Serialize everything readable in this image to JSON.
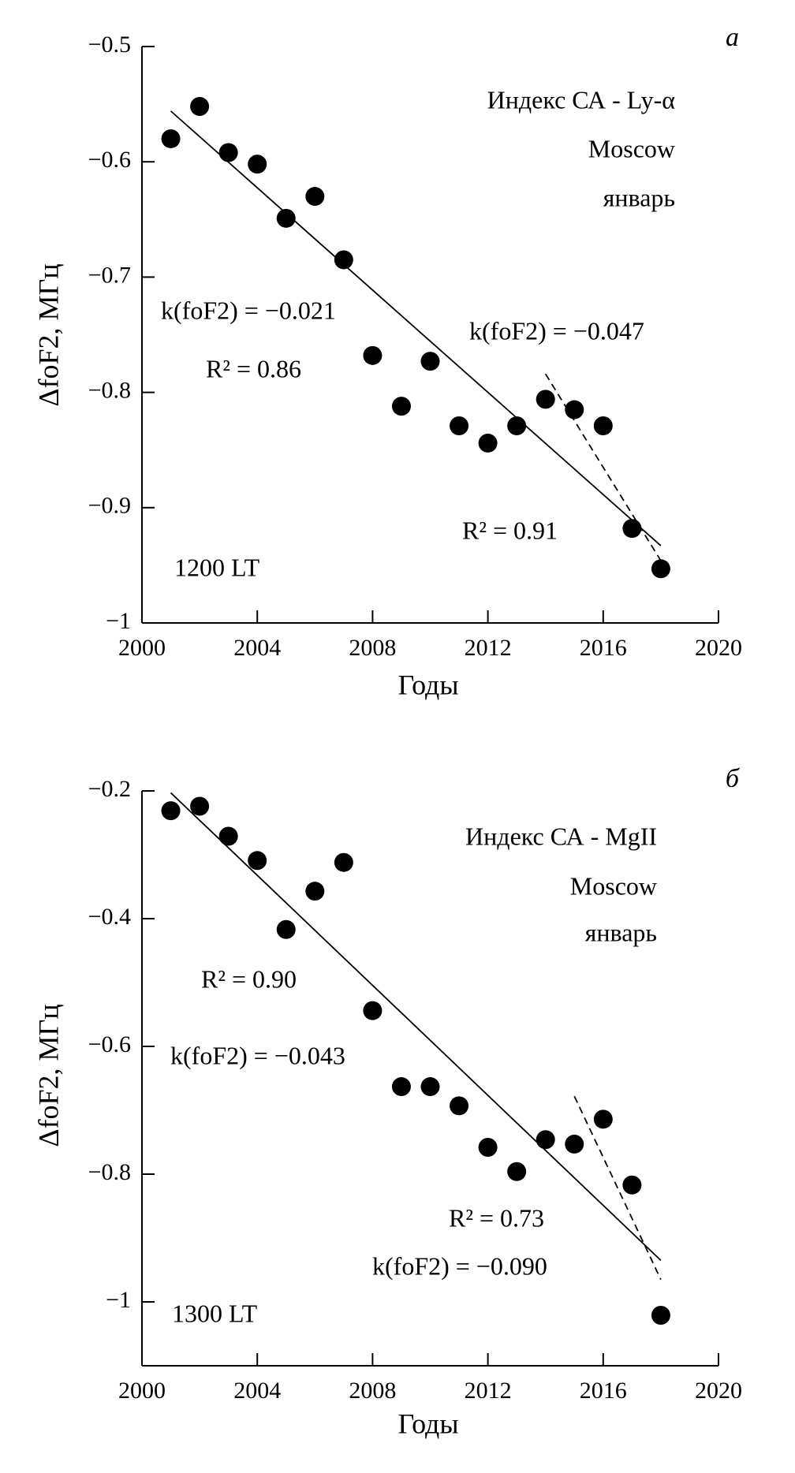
{
  "chart_data": [
    {
      "type": "scatter",
      "panel_label": "а",
      "x_label": "Годы",
      "y_label": "ΔfoF2, МГц",
      "xlim": [
        2000,
        2020
      ],
      "xticks": [
        2000,
        2004,
        2008,
        2012,
        2016,
        2020
      ],
      "ylim": [
        -1,
        -0.5
      ],
      "yticks": [
        {
          "value": -1,
          "label": "−1"
        },
        {
          "value": -0.9,
          "label": "−0.9"
        },
        {
          "value": -0.8,
          "label": "−0.8"
        },
        {
          "value": -0.7,
          "label": "−0.7"
        },
        {
          "value": -0.6,
          "label": "−0.6"
        },
        {
          "value": -0.5,
          "label": "−0.5"
        }
      ],
      "color": "#000000",
      "x": [
        2001,
        2002,
        2003,
        2004,
        2005,
        2006,
        2007,
        2008,
        2009,
        2010,
        2011,
        2012,
        2013,
        2014,
        2015,
        2016,
        2017,
        2018
      ],
      "values": [
        -0.58,
        -0.552,
        -0.592,
        -0.602,
        -0.649,
        -0.63,
        -0.685,
        -0.768,
        -0.812,
        -0.773,
        -0.829,
        -0.844,
        -0.829,
        -0.806,
        -0.815,
        -0.829,
        -0.918,
        -0.953
      ],
      "trend_lines": [
        {
          "x": [
            2001,
            2018
          ],
          "y": [
            -0.556,
            -0.933
          ],
          "style": "solid"
        },
        {
          "x": [
            2014,
            2018
          ],
          "y": [
            -0.784,
            -0.946
          ],
          "style": "dashed"
        }
      ],
      "legend_texts": [
        "Индекс СА - Ly-α",
        "Moscow",
        "январь"
      ],
      "annotations": [
        "k(foF2) = −0.021",
        "R² = 0.86",
        "k(foF2) = −0.047",
        "R² = 0.91",
        "1200 LT"
      ]
    },
    {
      "type": "scatter",
      "panel_label": "б",
      "x_label": "Годы",
      "y_label": "ΔfoF2, МГц",
      "xlim": [
        2000,
        2020
      ],
      "xticks": [
        2000,
        2004,
        2008,
        2012,
        2016,
        2020
      ],
      "ylim": [
        -1.1,
        -0.2
      ],
      "yticks": [
        {
          "value": -1,
          "label": "−1"
        },
        {
          "value": -0.8,
          "label": "−0.8"
        },
        {
          "value": -0.6,
          "label": "−0.6"
        },
        {
          "value": -0.4,
          "label": "−0.4"
        },
        {
          "value": -0.2,
          "label": "−0.2"
        }
      ],
      "color": "#000000",
      "x": [
        2001,
        2002,
        2003,
        2004,
        2005,
        2006,
        2007,
        2008,
        2009,
        2010,
        2011,
        2012,
        2013,
        2014,
        2015,
        2016,
        2017,
        2018
      ],
      "values": [
        -0.231,
        -0.224,
        -0.271,
        -0.309,
        -0.417,
        -0.357,
        -0.312,
        -0.544,
        -0.663,
        -0.663,
        -0.693,
        -0.758,
        -0.796,
        -0.746,
        -0.753,
        -0.714,
        -0.817,
        -1.021
      ],
      "trend_lines": [
        {
          "x": [
            2001,
            2018
          ],
          "y": [
            -0.203,
            -0.935
          ],
          "style": "solid"
        },
        {
          "x": [
            2015,
            2018
          ],
          "y": [
            -0.678,
            -0.965
          ],
          "style": "dashed"
        }
      ],
      "legend_texts": [
        "Индекс СА - MgII",
        "Moscow",
        "январь"
      ],
      "annotations": [
        "R² = 0.90",
        "k(foF2) = −0.043",
        "R² = 0.73",
        "k(foF2) = −0.090",
        "1300 LT"
      ]
    }
  ]
}
